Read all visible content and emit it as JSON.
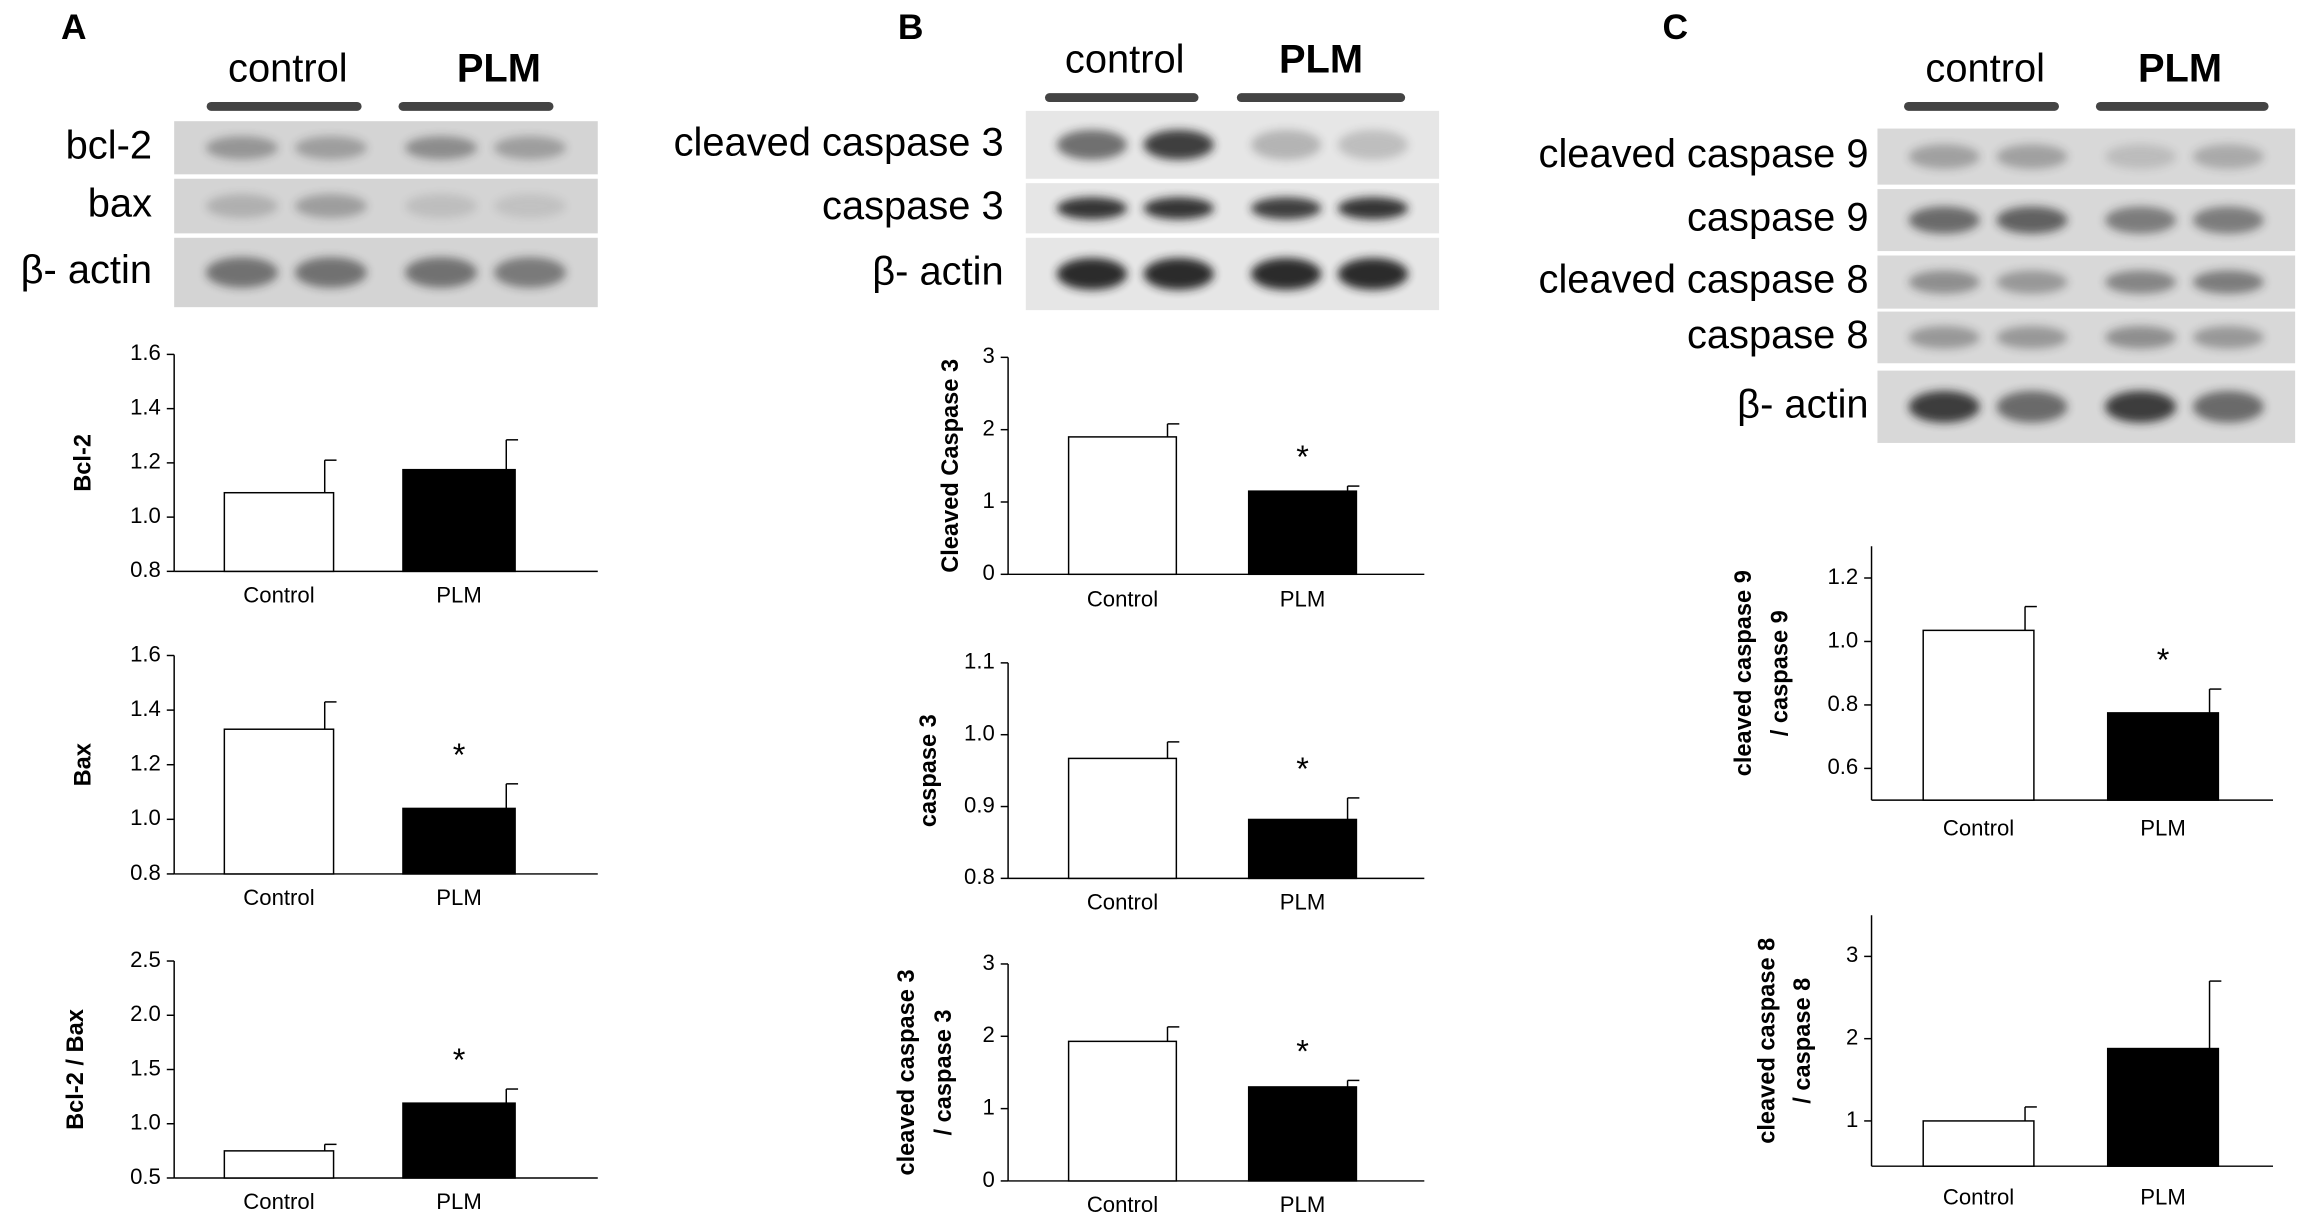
{
  "panels": [
    {
      "label": "A",
      "groups": [
        "control",
        "PLM"
      ],
      "rows": [
        "bcl-2",
        "bax",
        "β- actin"
      ]
    },
    {
      "label": "B",
      "groups": [
        "control",
        "PLM"
      ],
      "rows": [
        "cleaved caspase 3",
        "caspase 3",
        "β- actin"
      ]
    },
    {
      "label": "C",
      "groups": [
        "control",
        "PLM"
      ],
      "rows": [
        "cleaved caspase 9",
        "caspase 9",
        "cleaved caspase 8",
        "caspase 8",
        "β- actin"
      ]
    }
  ],
  "chart_data": [
    {
      "type": "bar",
      "ylabel": [
        "Bcl-2"
      ],
      "categories": [
        "Control",
        "PLM"
      ],
      "values": [
        1.09,
        1.175
      ],
      "errors": [
        0.12,
        0.11
      ],
      "colors": [
        "#ffffff",
        "#000000"
      ],
      "significance": [
        null,
        null
      ],
      "ylim": [
        0.8,
        1.6
      ],
      "yticks": [
        0.8,
        {
          "value": 1,
          "label": "1.0"
        },
        1.2,
        1.4,
        1.6
      ]
    },
    {
      "type": "bar",
      "ylabel": [
        "Bax"
      ],
      "categories": [
        "Control",
        "PLM"
      ],
      "values": [
        1.33,
        1.04
      ],
      "errors": [
        0.1,
        0.09
      ],
      "colors": [
        "#ffffff",
        "#000000"
      ],
      "significance": [
        null,
        "*"
      ],
      "ylim": [
        0.8,
        1.6
      ],
      "yticks": [
        0.8,
        {
          "value": 1,
          "label": "1.0"
        },
        1.2,
        1.4,
        1.6
      ]
    },
    {
      "type": "bar",
      "ylabel": [
        "Bcl-2 / Bax"
      ],
      "categories": [
        "Control",
        "PLM"
      ],
      "values": [
        0.75,
        1.19
      ],
      "errors": [
        0.06,
        0.13
      ],
      "colors": [
        "#ffffff",
        "#000000"
      ],
      "significance": [
        null,
        "*"
      ],
      "ylim": [
        0.5,
        2.5
      ],
      "yticks": [
        0.5,
        {
          "value": 1,
          "label": "1.0"
        },
        1.5,
        {
          "value": 2,
          "label": "2.0"
        },
        2.5
      ]
    },
    {
      "type": "bar",
      "ylabel": [
        "Cleaved Caspase 3"
      ],
      "categories": [
        "Control",
        "PLM"
      ],
      "values": [
        1.9,
        1.15
      ],
      "errors": [
        0.18,
        0.07
      ],
      "colors": [
        "#ffffff",
        "#000000"
      ],
      "significance": [
        null,
        "*"
      ],
      "ylim": [
        0,
        3
      ],
      "yticks": [
        0,
        1,
        2,
        3
      ]
    },
    {
      "type": "bar",
      "ylabel": [
        "caspase 3"
      ],
      "categories": [
        "Control",
        "PLM"
      ],
      "values": [
        0.967,
        0.882
      ],
      "errors": [
        0.023,
        0.03
      ],
      "colors": [
        "#ffffff",
        "#000000"
      ],
      "significance": [
        null,
        "*"
      ],
      "ylim": [
        0.8,
        1.1
      ],
      "yticks": [
        0.8,
        0.9,
        {
          "value": 1,
          "label": "1.0"
        },
        1.1
      ]
    },
    {
      "type": "bar",
      "ylabel": [
        "cleaved caspase 3",
        "/ caspase 3"
      ],
      "categories": [
        "Control",
        "PLM"
      ],
      "values": [
        1.93,
        1.3
      ],
      "errors": [
        0.2,
        0.09
      ],
      "colors": [
        "#ffffff",
        "#000000"
      ],
      "significance": [
        null,
        "*"
      ],
      "ylim": [
        0,
        3
      ],
      "yticks": [
        0,
        1,
        2,
        3
      ]
    },
    {
      "type": "bar",
      "ylabel": [
        "cleaved caspase 9",
        "/ caspase 9"
      ],
      "categories": [
        "Control",
        "PLM"
      ],
      "values": [
        1.035,
        0.775
      ],
      "errors": [
        0.075,
        0.075
      ],
      "colors": [
        "#ffffff",
        "#000000"
      ],
      "significance": [
        null,
        "*"
      ],
      "ylim": [
        0.5,
        1.3
      ],
      "yticks": [
        0.6,
        0.8,
        {
          "value": 1,
          "label": "1.0"
        },
        1.2
      ]
    },
    {
      "type": "bar",
      "ylabel": [
        "cleaved caspase 8",
        "/ caspase 8"
      ],
      "categories": [
        "Control",
        "PLM"
      ],
      "values": [
        1.0,
        1.88
      ],
      "errors": [
        0.17,
        0.82
      ],
      "colors": [
        "#ffffff",
        "#000000"
      ],
      "significance": [
        null,
        null
      ],
      "ylim": [
        0.45,
        3.5
      ],
      "yticks": [
        1,
        2,
        3
      ]
    }
  ]
}
